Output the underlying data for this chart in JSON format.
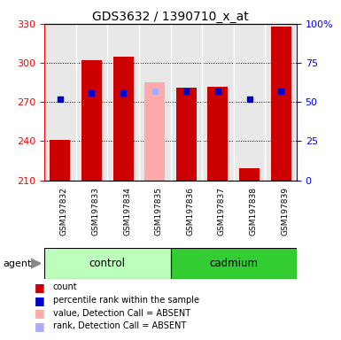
{
  "title": "GDS3632 / 1390710_x_at",
  "samples": [
    "GSM197832",
    "GSM197833",
    "GSM197834",
    "GSM197835",
    "GSM197836",
    "GSM197837",
    "GSM197838",
    "GSM197839"
  ],
  "count_values": [
    241,
    302,
    305,
    285,
    281,
    282,
    219,
    328
  ],
  "percentile_values": [
    52,
    56,
    56,
    57,
    57,
    57,
    52,
    57
  ],
  "absent_flags": [
    false,
    false,
    false,
    true,
    false,
    false,
    false,
    false
  ],
  "ymin": 210,
  "ymax": 330,
  "yticks_left": [
    210,
    240,
    270,
    300,
    330
  ],
  "yticks_right": [
    0,
    25,
    50,
    75,
    100
  ],
  "bar_width": 0.65,
  "n_control": 4,
  "bar_color_present": "#cc0000",
  "bar_color_absent": "#ffaaaa",
  "dot_color_present": "#0000cc",
  "dot_color_absent": "#aaaaff",
  "control_bg_color": "#bbffbb",
  "cadmium_bg_color": "#33cc33",
  "sample_label_bg": "#cccccc",
  "legend": [
    {
      "color": "#cc0000",
      "label": "count"
    },
    {
      "color": "#0000cc",
      "label": "percentile rank within the sample"
    },
    {
      "color": "#ffaaaa",
      "label": "value, Detection Call = ABSENT"
    },
    {
      "color": "#aaaaff",
      "label": "rank, Detection Call = ABSENT"
    }
  ]
}
